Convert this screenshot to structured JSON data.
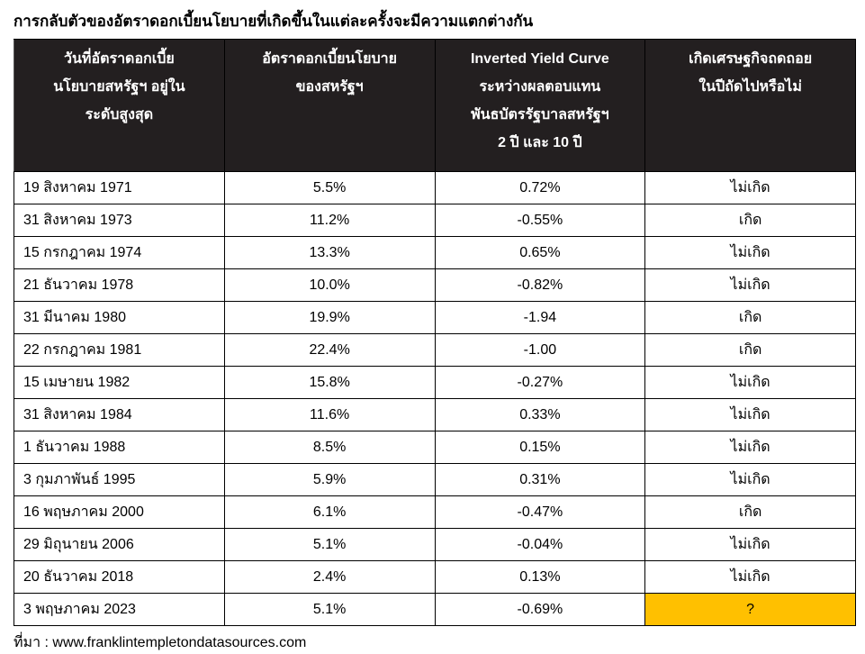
{
  "title": "การกลับตัวของอัตราดอกเบี้ยนโยบายที่เกิดขึ้นในแต่ละครั้งจะมีความแตกต่างกัน",
  "table": {
    "header": [
      [
        "วันที่อัตราดอกเบี้ย",
        "นโยบายสหรัฐฯ อยู่ใน",
        "ระดับสูงสุด"
      ],
      [
        "อัตราดอกเบี้ยนโยบาย",
        "ของสหรัฐฯ"
      ],
      [
        "Inverted Yield Curve",
        "ระหว่างผลตอบแทน",
        "พันธบัตรรัฐบาลสหรัฐฯ",
        "2 ปี และ 10 ปี"
      ],
      [
        "เกิดเศรษฐกิจถดถอย",
        "ในปีถัดไปหรือไม่"
      ]
    ],
    "rows": [
      [
        "19 สิงหาคม 1971",
        "5.5%",
        "0.72%",
        "ไม่เกิด"
      ],
      [
        "31 สิงหาคม 1973",
        "11.2%",
        "-0.55%",
        "เกิด"
      ],
      [
        "15 กรกฎาคม 1974",
        "13.3%",
        "0.65%",
        "ไม่เกิด"
      ],
      [
        "21 ธันวาคม 1978",
        "10.0%",
        "-0.82%",
        "ไม่เกิด"
      ],
      [
        "31 มีนาคม 1980",
        "19.9%",
        "-1.94",
        "เกิด"
      ],
      [
        "22 กรกฎาคม 1981",
        "22.4%",
        "-1.00",
        "เกิด"
      ],
      [
        "15 เมษายน 1982",
        "15.8%",
        "-0.27%",
        "ไม่เกิด"
      ],
      [
        "31 สิงหาคม 1984",
        "11.6%",
        "0.33%",
        "ไม่เกิด"
      ],
      [
        "1 ธันวาคม 1988",
        "8.5%",
        "0.15%",
        "ไม่เกิด"
      ],
      [
        "3 กุมภาพันธ์ 1995",
        "5.9%",
        "0.31%",
        "ไม่เกิด"
      ],
      [
        "16 พฤษภาคม 2000",
        "6.1%",
        "-0.47%",
        "เกิด"
      ],
      [
        "29 มิถุนายน 2006",
        "5.1%",
        "-0.04%",
        "ไม่เกิด"
      ],
      [
        "20 ธันวาคม 2018",
        "2.4%",
        "0.13%",
        "ไม่เกิด"
      ],
      [
        "3 พฤษภาคม 2023",
        "5.1%",
        "-0.69%",
        "?"
      ]
    ]
  },
  "source": "ที่มา : www.franklintempletondatasources.com"
}
